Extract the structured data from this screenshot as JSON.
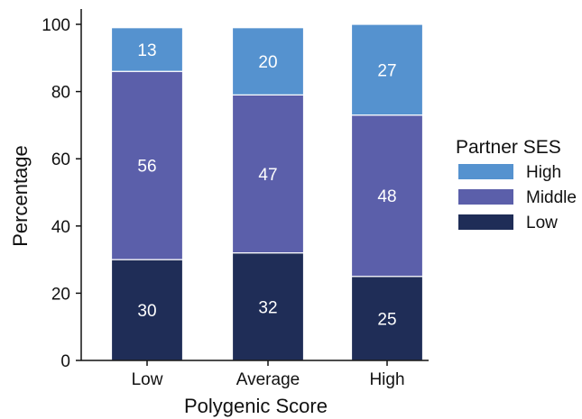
{
  "chart_data": {
    "type": "bar",
    "stacked": true,
    "title": "",
    "xlabel": "Polygenic Score",
    "ylabel": "Percentage",
    "ylim": [
      0,
      100
    ],
    "yticks": [
      0,
      20,
      40,
      60,
      80,
      100
    ],
    "categories": [
      "Low",
      "Average",
      "High"
    ],
    "series": [
      {
        "name": "Low",
        "values": [
          30,
          32,
          25
        ],
        "color": "#1f2d57"
      },
      {
        "name": "Middle",
        "values": [
          56,
          47,
          48
        ],
        "color": "#5b5faa"
      },
      {
        "name": "High",
        "values": [
          13,
          20,
          27
        ],
        "color": "#5592cf"
      }
    ],
    "legend": {
      "title": "Partner SES",
      "position": "right",
      "order": [
        "High",
        "Middle",
        "Low"
      ]
    },
    "grid": false
  }
}
